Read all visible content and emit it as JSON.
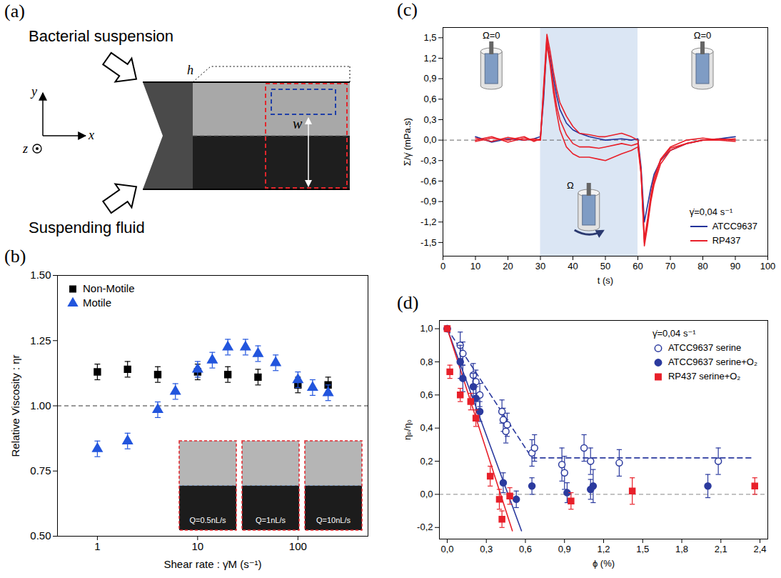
{
  "diagram": {
    "panel": "(a)",
    "top_label": "Bacterial suspension",
    "bottom_label": "Suspending fluid",
    "h": "h",
    "w": "w",
    "x": "x",
    "y": "y",
    "z": "z"
  },
  "chart_data": [
    {
      "panel": "(b)",
      "type": "scatter",
      "xlabel": "Shear rate : γ̇M (s⁻¹)",
      "ylabel": "Relative Viscosity : ηr",
      "log": "x",
      "xlim": [
        0.4,
        500
      ],
      "xticks": [
        1,
        10,
        100
      ],
      "ylim": [
        0.5,
        1.5
      ],
      "yticks": [
        {
          "value": 0.5,
          "label": "0.50"
        },
        {
          "value": 0.75,
          "label": "0.75"
        },
        {
          "value": 1,
          "label": "1.00"
        },
        {
          "value": 1.25,
          "label": "1.25"
        },
        {
          "value": 1.5,
          "label": "1.50"
        }
      ],
      "reference_y": 1,
      "legend": "top-left",
      "inset_labels": [
        "Q=0.5nL/s",
        "Q=1nL/s",
        "Q=10nL/s"
      ],
      "series": [
        {
          "name": "Non-Motile",
          "color": "#000000",
          "marker": "square",
          "x": [
            1,
            2,
            4,
            10,
            20,
            40,
            100,
            200
          ],
          "values": [
            1.13,
            1.14,
            1.12,
            1.13,
            1.12,
            1.11,
            1.08,
            1.08
          ],
          "errors": [
            0.03,
            0.03,
            0.03,
            0.03,
            0.03,
            0.03,
            0.03,
            0.03
          ]
        },
        {
          "name": "Motile",
          "color": "#2255dd",
          "marker": "triangle",
          "x": [
            1,
            2,
            4,
            6,
            10,
            14,
            20,
            30,
            40,
            60,
            100,
            140,
            200
          ],
          "values": [
            0.835,
            0.865,
            0.985,
            1.055,
            1.14,
            1.175,
            1.225,
            1.225,
            1.2,
            1.165,
            1.1,
            1.07,
            1.05
          ],
          "errors": [
            0.03,
            0.03,
            0.03,
            0.03,
            0.03,
            0.03,
            0.03,
            0.03,
            0.03,
            0.03,
            0.03,
            0.03,
            0.03
          ]
        }
      ]
    },
    {
      "panel": "(c)",
      "type": "line",
      "xlabel": "t (s)",
      "ylabel": "Σ/γ̇ (mPa.s)",
      "xlim": [
        0,
        100
      ],
      "xticks": [
        0,
        10,
        20,
        30,
        40,
        50,
        60,
        70,
        80,
        90,
        100
      ],
      "ylim": [
        -1.7,
        1.65
      ],
      "yticks": [
        {
          "value": -1.5,
          "label": "-1,5"
        },
        {
          "value": -1.2,
          "label": "-1,2"
        },
        {
          "value": -0.9,
          "label": "-0,9"
        },
        {
          "value": -0.6,
          "label": "-0,6"
        },
        {
          "value": -0.3,
          "label": "-0,3"
        },
        {
          "value": 0,
          "label": "0,0"
        },
        {
          "value": 0.3,
          "label": "0,3"
        },
        {
          "value": 0.6,
          "label": "0,6"
        },
        {
          "value": 0.9,
          "label": "0,9"
        },
        {
          "value": 1.2,
          "label": "1,2"
        },
        {
          "value": 1.5,
          "label": "1,5"
        }
      ],
      "shaded": [
        30,
        60
      ],
      "reference_y": 0,
      "annotations": [
        "Ω=0",
        "Ω",
        "Ω=0"
      ],
      "legend": "bottom-right",
      "legend_title": "γ̇=0,04 s⁻¹",
      "x": [
        10,
        15,
        20,
        25,
        28,
        30,
        31,
        32,
        33,
        34,
        35,
        36,
        38,
        40,
        42,
        45,
        48,
        50,
        55,
        58,
        60,
        61,
        62,
        63,
        64,
        65,
        67,
        70,
        75,
        80,
        85,
        90
      ],
      "series": [
        {
          "name": "ATCC9637",
          "color": "#23339a",
          "values": [
            0.05,
            -0.03,
            0.02,
            0,
            0.02,
            0.05,
            0.6,
            1.45,
            1.2,
            0.9,
            0.65,
            0.45,
            0.25,
            0.15,
            0.1,
            0.05,
            0.02,
            0,
            0.02,
            0,
            0.02,
            -0.4,
            -1.2,
            -0.95,
            -0.7,
            -0.5,
            -0.3,
            -0.15,
            -0.05,
            0,
            0.02,
            0.05
          ]
        },
        {
          "name": "RP437",
          "color": "#e8202a",
          "values": [
            0,
            0.05,
            -0.03,
            0.03,
            0,
            0,
            0.8,
            1.55,
            1.3,
            1.0,
            0.75,
            0.55,
            0.35,
            0.2,
            0.1,
            0.08,
            0.05,
            0.05,
            0.1,
            0.05,
            0,
            -0.5,
            -1.55,
            -1.25,
            -0.9,
            -0.65,
            -0.35,
            -0.15,
            -0.05,
            0,
            0,
            0.02
          ]
        },
        {
          "name": "RP437",
          "color": "#e8202a",
          "values": [
            0.03,
            -0.02,
            0.04,
            0,
            0.02,
            0,
            0.7,
            1.4,
            1.1,
            0.7,
            0.4,
            0.15,
            -0.1,
            -0.2,
            -0.25,
            -0.25,
            -0.28,
            -0.3,
            -0.2,
            -0.15,
            -0.1,
            -0.5,
            -1.5,
            -1.2,
            -0.85,
            -0.6,
            -0.3,
            -0.12,
            -0.05,
            0,
            0.02,
            0
          ]
        },
        {
          "name": "RP437",
          "color": "#e8202a",
          "values": [
            -0.02,
            0.03,
            0,
            0.05,
            -0.02,
            0.02,
            0.75,
            1.5,
            1.15,
            0.8,
            0.5,
            0.3,
            0.08,
            -0.05,
            -0.1,
            -0.1,
            -0.12,
            -0.1,
            -0.05,
            -0.08,
            -0.05,
            -0.45,
            -1.45,
            -1.15,
            -0.8,
            -0.55,
            -0.28,
            -0.1,
            0,
            0.03,
            0,
            -0.02
          ]
        }
      ]
    },
    {
      "panel": "(d)",
      "type": "scatter",
      "xlabel": "ϕ (%)",
      "ylabel": "ηₚ/η₀",
      "xlim": [
        -0.06,
        2.46
      ],
      "xticks": [
        {
          "value": 0,
          "label": "0,0"
        },
        {
          "value": 0.3,
          "label": "0,3"
        },
        {
          "value": 0.6,
          "label": "0,6"
        },
        {
          "value": 0.9,
          "label": "0,9"
        },
        {
          "value": 1.2,
          "label": "1,2"
        },
        {
          "value": 1.5,
          "label": "1,5"
        },
        {
          "value": 1.8,
          "label": "1,8"
        },
        {
          "value": 2.1,
          "label": "2,1"
        },
        {
          "value": 2.4,
          "label": "2,4"
        }
      ],
      "ylim": [
        -0.27,
        1.05
      ],
      "yticks": [
        {
          "value": -0.2,
          "label": "-0,2"
        },
        {
          "value": 0,
          "label": "0,0"
        },
        {
          "value": 0.2,
          "label": "0,2"
        },
        {
          "value": 0.4,
          "label": "0,4"
        },
        {
          "value": 0.6,
          "label": "0,6"
        },
        {
          "value": 0.8,
          "label": "0,8"
        },
        {
          "value": 1,
          "label": "1,0"
        }
      ],
      "reference_y": 0,
      "legend": "top-right",
      "legend_title": "γ̇=0,04 s⁻¹",
      "series": [
        {
          "name": "ATCC9637 serine",
          "color": "#2b3a9e",
          "marker": "circle-open",
          "x": [
            0,
            0.1,
            0.12,
            0.2,
            0.22,
            0.25,
            0.42,
            0.43,
            0.45,
            0.46,
            0.65,
            0.67,
            0.88,
            0.9,
            1.05,
            1.1,
            1.32,
            2.08
          ],
          "values": [
            1,
            0.9,
            0.85,
            0.72,
            0.68,
            0.6,
            0.5,
            0.45,
            0.38,
            0.42,
            0.25,
            0.28,
            0.18,
            0.13,
            0.28,
            0.2,
            0.19,
            0.2
          ],
          "errors": [
            0,
            0.08,
            0.07,
            0.07,
            0.07,
            0.07,
            0.07,
            0.07,
            0.07,
            0.07,
            0.08,
            0.08,
            0.1,
            0.1,
            0.08,
            0.08,
            0.08,
            0.08
          ]
        },
        {
          "name": "ATCC9637 serine+O₂",
          "color": "#2b3a9e",
          "marker": "circle",
          "x": [
            0,
            0.1,
            0.12,
            0.2,
            0.22,
            0.25,
            0.43,
            0.53,
            0.65,
            0.92,
            1.1,
            1.12,
            2.0
          ],
          "values": [
            1,
            0.8,
            0.7,
            0.65,
            0.58,
            0.5,
            0.07,
            -0.03,
            0.05,
            0.01,
            0.03,
            0.05,
            0.05
          ],
          "errors": [
            0,
            0.1,
            0.08,
            0.08,
            0.07,
            0.06,
            0.06,
            0.05,
            0.05,
            0.06,
            0.06,
            0.1,
            0.07
          ]
        },
        {
          "name": "RP437 serine+O₂",
          "color": "#e8202a",
          "marker": "square",
          "x": [
            0,
            0.02,
            0.1,
            0.18,
            0.22,
            0.33,
            0.4,
            0.42,
            0.48,
            0.95,
            1.42,
            2.36
          ],
          "values": [
            1,
            0.74,
            0.6,
            0.56,
            0.46,
            0.11,
            -0.03,
            -0.15,
            -0.01,
            -0.04,
            0.02,
            0.05
          ],
          "errors": [
            0,
            0.04,
            0.04,
            0.05,
            0.05,
            0.06,
            0.06,
            0.05,
            0.05,
            0.05,
            0.08,
            0.05
          ]
        },
        {
          "type": "line",
          "color": "#2b3a9e",
          "line_style": "dashed",
          "x": [
            0,
            0.65,
            2.35
          ],
          "values": [
            1,
            0.22,
            0.22
          ]
        },
        {
          "type": "line",
          "color": "#2b3a9e",
          "line_style": "solid",
          "x": [
            0,
            0.57
          ],
          "values": [
            1,
            -0.22
          ]
        },
        {
          "type": "line",
          "color": "#e8202a",
          "line_style": "solid",
          "x": [
            0,
            0.5
          ],
          "values": [
            1,
            -0.22
          ]
        }
      ]
    }
  ]
}
